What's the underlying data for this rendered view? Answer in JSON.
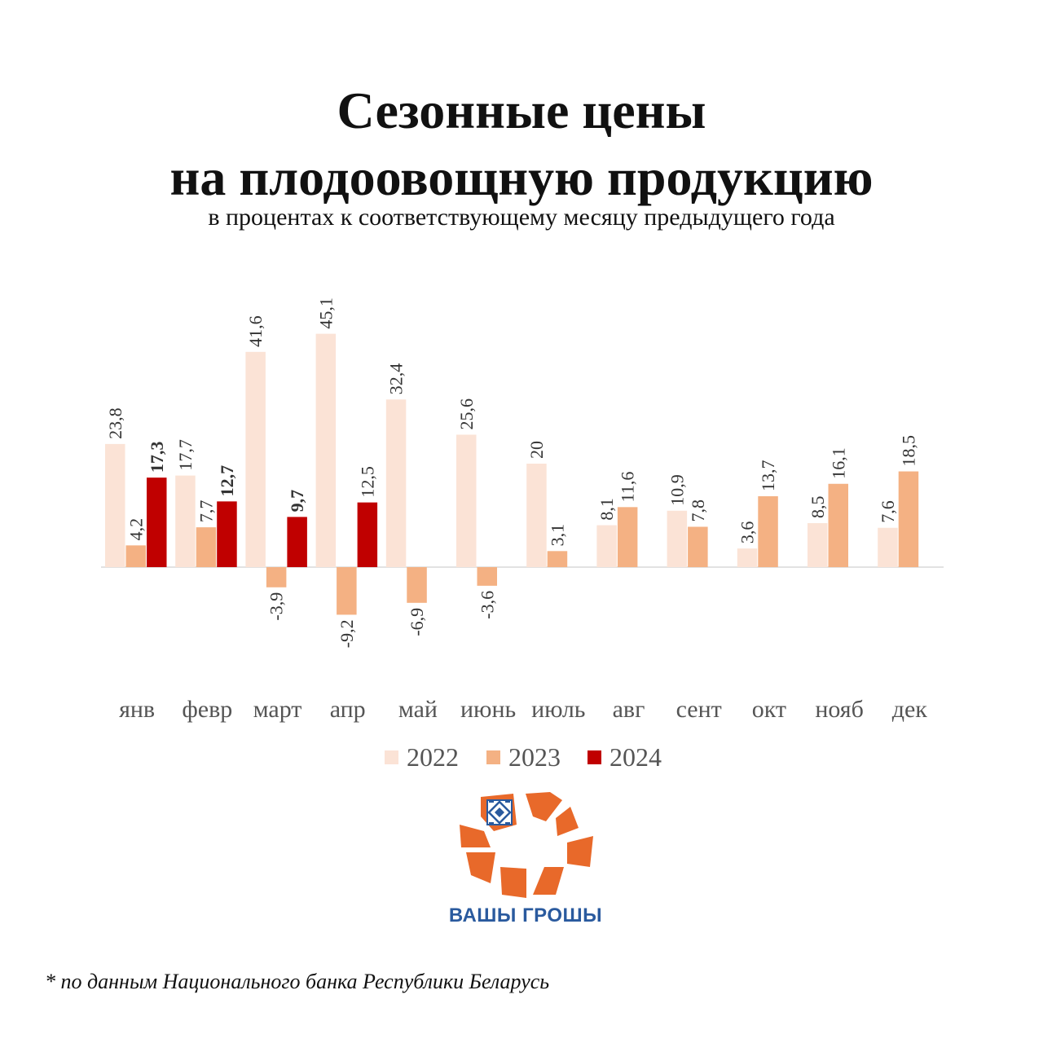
{
  "title": {
    "line1": "Сезонные цены",
    "line2": "на плодоовощную продукцию",
    "subtitle": "в процентах к соответствующему месяцу предыдущего года"
  },
  "chart_data": {
    "type": "bar",
    "categories": [
      "янв",
      "февр",
      "март",
      "апр",
      "май",
      "июнь",
      "июль",
      "авг",
      "сент",
      "окт",
      "нояб",
      "дек"
    ],
    "series": [
      {
        "name": "2022",
        "color": "#fbe3d6",
        "values": [
          23.8,
          17.7,
          41.6,
          45.1,
          32.4,
          25.6,
          20,
          8.1,
          10.9,
          3.6,
          8.5,
          7.6
        ],
        "labels": [
          "23,8",
          "17,7",
          "41,6",
          "45,1",
          "32,4",
          "25,6",
          "20",
          "8,1",
          "10,9",
          "3,6",
          "8,5",
          "7,6"
        ]
      },
      {
        "name": "2023",
        "color": "#f4b183",
        "values": [
          4.2,
          7.7,
          -3.9,
          -9.2,
          -6.9,
          -3.6,
          3.1,
          11.6,
          7.8,
          13.7,
          16.1,
          18.5
        ],
        "labels": [
          "4,2",
          "7,7",
          "-3,9",
          "-9,2",
          "-6,9",
          "-3,6",
          "3,1",
          "11,6",
          "7,8",
          "13,7",
          "16,1",
          "18,5"
        ]
      },
      {
        "name": "2024",
        "color": "#c00000",
        "values": [
          17.3,
          12.7,
          9.7,
          12.5,
          null,
          null,
          null,
          null,
          null,
          null,
          null,
          null
        ],
        "labels": [
          "17,3",
          "12,7",
          "9,7",
          "12,5",
          "",
          "",
          "",
          "",
          "",
          "",
          "",
          ""
        ],
        "bold_labels": [
          true,
          true,
          true,
          false
        ]
      }
    ],
    "legend_position": "bottom",
    "grid": false,
    "ylim": [
      -13,
      48
    ]
  },
  "footnote": "* по данным Национального банка Республики Беларусь",
  "logo": {
    "text": "ВАШЫ ГРОШЫ",
    "color": "#e8692a"
  }
}
